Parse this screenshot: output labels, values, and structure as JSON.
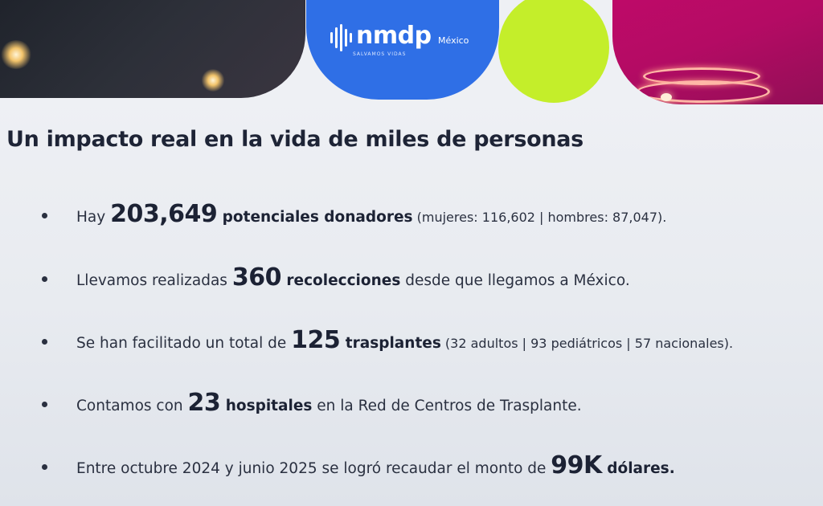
{
  "header": {
    "logo_text": "nmdp",
    "logo_tagline": "SALVAMOS VIDAS",
    "logo_country": "México",
    "colors": {
      "blue": "#2f6fe6",
      "green": "#c4ee2a",
      "magenta": "#c20a6a"
    }
  },
  "title": "Un impacto real en la vida de miles de personas",
  "bullets": [
    {
      "pre": "Hay ",
      "number": "203,649",
      "bold": " potenciales donadores",
      "post": " (mujeres: 116,602 | hombres: 87,047)."
    },
    {
      "pre": "Llevamos realizadas ",
      "number": "360",
      "bold": " recolecciones",
      "post": " desde que llegamos a México."
    },
    {
      "pre": "Se han facilitado un total de ",
      "number": "125",
      "bold": " trasplantes",
      "post": " (32 adultos | 93 pediátricos | 57 nacionales)."
    },
    {
      "pre": "Contamos con ",
      "number": "23",
      "bold": " hospitales",
      "post": " en la Red de Centros de Trasplante."
    },
    {
      "pre": "Entre octubre 2024 y junio 2025 se logró recaudar el monto de ",
      "number": "99K",
      "bold": " dólares.",
      "post": ""
    }
  ]
}
